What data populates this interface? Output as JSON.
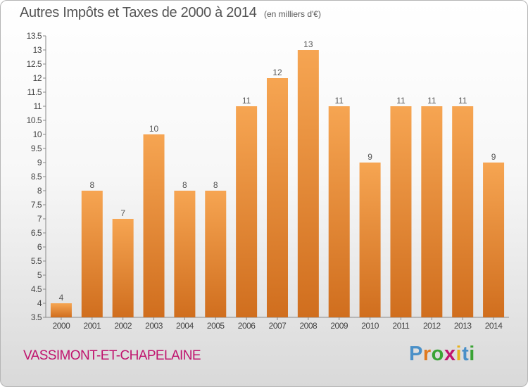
{
  "chart_data": {
    "type": "bar",
    "title": "Autres Impôts et Taxes de 2000 à 2014",
    "subtitle": "(en milliers d'€)",
    "xlabel": "",
    "ylabel": "",
    "categories": [
      "2000",
      "2001",
      "2002",
      "2003",
      "2004",
      "2005",
      "2006",
      "2007",
      "2008",
      "2009",
      "2010",
      "2011",
      "2012",
      "2013",
      "2014"
    ],
    "values": [
      4,
      8,
      7,
      10,
      8,
      8,
      11,
      12,
      13,
      11,
      9,
      11,
      11,
      11,
      9
    ],
    "data_labels": [
      "4",
      "8",
      "7",
      "10",
      "8",
      "8",
      "11",
      "12",
      "13",
      "11",
      "9",
      "11",
      "11",
      "11",
      "9"
    ],
    "ylim": [
      3.5,
      13.5
    ],
    "yticks": [
      "3.5",
      "4",
      "4.5",
      "5",
      "5.5",
      "6",
      "6.5",
      "7",
      "7.5",
      "8",
      "8.5",
      "9",
      "9.5",
      "10",
      "10.5",
      "11",
      "11.5",
      "12",
      "12.5",
      "13",
      "13.5"
    ],
    "grid": false,
    "bar_color_top": "#f6a552",
    "bar_color_bottom": "#d06e1e"
  },
  "footer": {
    "commune": "VASSIMONT-ET-CHAPELAINE",
    "brand_letters": [
      "P",
      "r",
      "o",
      "x",
      "i",
      "t",
      "i"
    ],
    "brand_colors": [
      "#4a90c8",
      "#e07a1f",
      "#3aa335",
      "#c0146e",
      "#e8b21e",
      "#4a90c8",
      "#3aa335"
    ]
  }
}
